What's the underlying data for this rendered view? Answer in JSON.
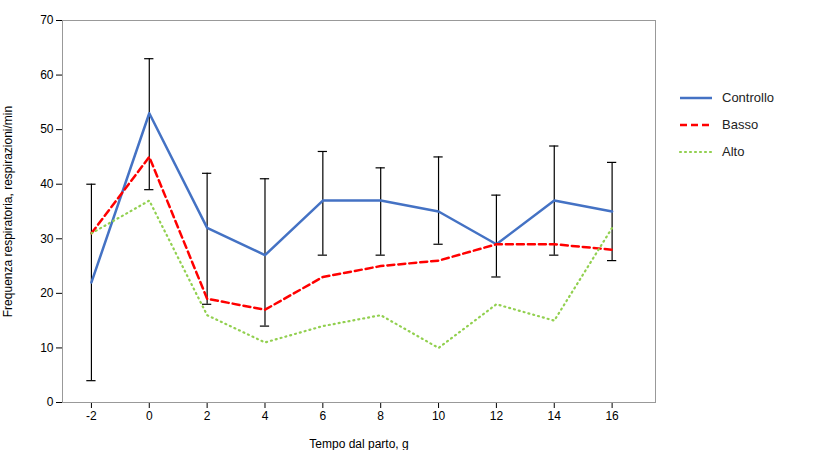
{
  "chart_data": {
    "type": "line",
    "xlabel": "Tempo dal parto, g",
    "ylabel": "Frequenza respiratoria, respirazioni/min",
    "x": [
      -2,
      0,
      2,
      4,
      6,
      8,
      10,
      12,
      14,
      16
    ],
    "series": [
      {
        "name": "Controllo",
        "color": "#4472C4",
        "line_style": "solid",
        "values": [
          22,
          53,
          32,
          27,
          37,
          37,
          35,
          29,
          37,
          35
        ],
        "err_upper": [
          18,
          10,
          10,
          14,
          9,
          6,
          10,
          9,
          10,
          9
        ],
        "err_lower": [
          18,
          14,
          14,
          13,
          10,
          10,
          6,
          6,
          10,
          9
        ]
      },
      {
        "name": "Basso",
        "color": "#FF0000",
        "line_style": "dashed",
        "values": [
          31,
          45,
          19,
          17,
          23,
          25,
          26,
          29,
          29,
          28
        ]
      },
      {
        "name": "Alto",
        "color": "#92D050",
        "line_style": "dotted",
        "values": [
          31,
          37,
          16,
          11,
          14,
          16,
          10,
          18,
          15,
          32
        ]
      }
    ],
    "xlim": [
      -3,
      17.5
    ],
    "xticks": [
      -2,
      0,
      2,
      4,
      6,
      8,
      10,
      12,
      14,
      16
    ],
    "ylim": [
      0,
      70
    ],
    "yticks": [
      0,
      10,
      20,
      30,
      40,
      50,
      60,
      70
    ],
    "grid": false,
    "legend": "right"
  }
}
